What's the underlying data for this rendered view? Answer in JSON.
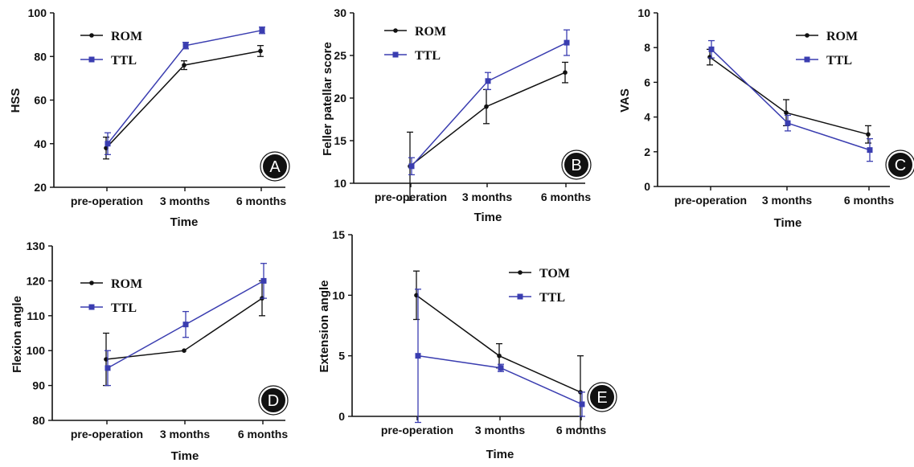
{
  "colors": {
    "rom": "#111111",
    "ttl": "#3a3db0",
    "axis": "#111111"
  },
  "chart_data": [
    {
      "panel": "A",
      "type": "line",
      "categories": [
        "pre-operation",
        "3 months",
        "6 months"
      ],
      "xlabel": "Time",
      "ylabel": "HSS",
      "ylim": [
        20,
        100
      ],
      "yticks": [
        20,
        40,
        60,
        80,
        100
      ],
      "series": [
        {
          "name": "ROM",
          "values": [
            38,
            76,
            82.5
          ],
          "err": [
            5,
            2,
            2.5
          ]
        },
        {
          "name": "TTL",
          "values": [
            40,
            85,
            92
          ],
          "err": [
            5,
            1.5,
            1.5
          ]
        }
      ]
    },
    {
      "panel": "B",
      "type": "line",
      "categories": [
        "pre-operation",
        "3 months",
        "6 months"
      ],
      "xlabel": "Time",
      "ylabel": "Feller patellar score",
      "ylim": [
        10,
        30
      ],
      "yticks": [
        10,
        15,
        20,
        25,
        30
      ],
      "series": [
        {
          "name": "ROM",
          "values": [
            12,
            19,
            23
          ],
          "err": [
            4,
            2,
            1.2
          ]
        },
        {
          "name": "TTL",
          "values": [
            12,
            22,
            26.5
          ],
          "err": [
            1,
            1,
            1.5
          ]
        }
      ]
    },
    {
      "panel": "C",
      "type": "line",
      "categories": [
        "pre-operation",
        "3 months",
        "6 months"
      ],
      "xlabel": "Time",
      "ylabel": "VAS",
      "ylim": [
        0,
        10
      ],
      "yticks": [
        0,
        2,
        4,
        6,
        8,
        10
      ],
      "series": [
        {
          "name": "ROM",
          "values": [
            7.45,
            4.25,
            3.0
          ],
          "err": [
            0.45,
            0.75,
            0.5
          ]
        },
        {
          "name": "TTL",
          "values": [
            7.9,
            3.65,
            2.1
          ],
          "err": [
            0.5,
            0.45,
            0.65
          ]
        }
      ]
    },
    {
      "panel": "D",
      "type": "line",
      "categories": [
        "pre-operation",
        "3 months",
        "6 months"
      ],
      "xlabel": "Time",
      "ylabel": "Flexion angle",
      "ylim": [
        80,
        130
      ],
      "yticks": [
        80,
        90,
        100,
        110,
        120,
        130
      ],
      "series": [
        {
          "name": "ROM",
          "values": [
            97.5,
            100,
            115
          ],
          "err": [
            7.5,
            0,
            5
          ]
        },
        {
          "name": "TTL",
          "values": [
            95,
            107.5,
            120
          ],
          "err": [
            5,
            3.7,
            5
          ]
        }
      ]
    },
    {
      "panel": "E",
      "type": "line",
      "categories": [
        "pre-operation",
        "3 months",
        "6 months"
      ],
      "xlabel": "Time",
      "ylabel": "Extension angle",
      "ylim": [
        0,
        15
      ],
      "yticks": [
        0,
        5,
        10,
        15
      ],
      "series": [
        {
          "name": "TOM",
          "values": [
            10,
            5,
            2
          ],
          "err": [
            2,
            1,
            3
          ]
        },
        {
          "name": "TTL",
          "values": [
            5,
            4,
            1
          ],
          "err": [
            5.5,
            0.3,
            1
          ]
        }
      ]
    }
  ]
}
